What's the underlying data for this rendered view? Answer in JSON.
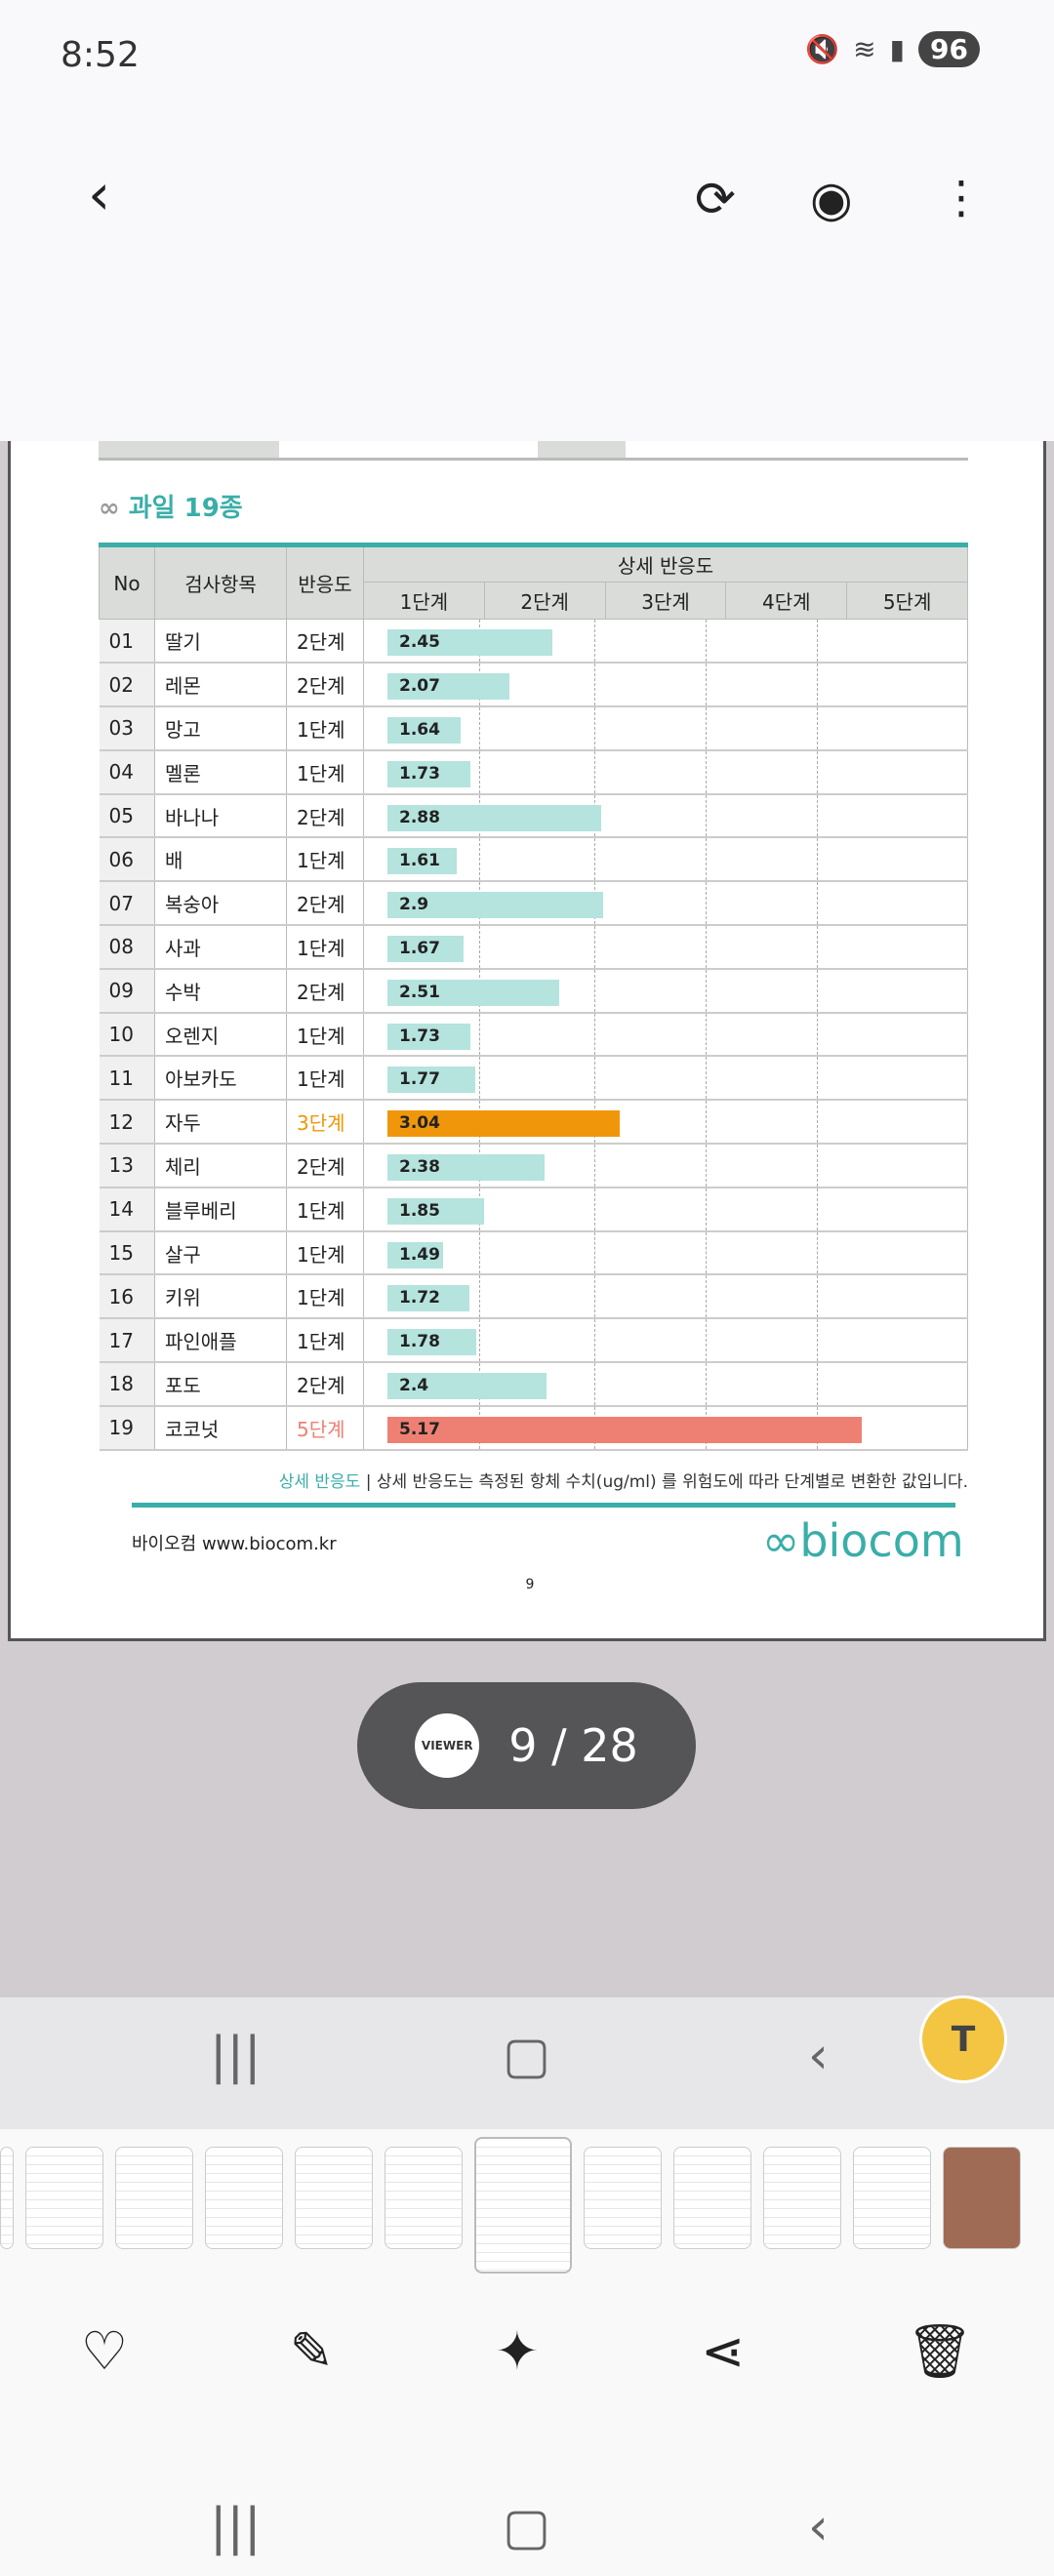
{
  "status": {
    "time": "8:52",
    "battery": "96",
    "icons": [
      "mute-icon",
      "wifi-icon",
      "signal-icon"
    ]
  },
  "toolbar": {
    "back": "back-icon",
    "play": "play-icon",
    "view": "eye-icon",
    "more": "more-icon"
  },
  "document": {
    "section_title": "과일 19종",
    "headers": {
      "no": "No",
      "item": "검사항목",
      "reaction": "반응도",
      "detail": "상세 반응도",
      "stages": [
        "1단계",
        "2단계",
        "3단계",
        "4단계",
        "5단계"
      ]
    },
    "rows": [
      {
        "no": "01",
        "item": "딸기",
        "level": "2단계",
        "value": "2.45"
      },
      {
        "no": "02",
        "item": "레몬",
        "level": "2단계",
        "value": "2.07"
      },
      {
        "no": "03",
        "item": "망고",
        "level": "1단계",
        "value": "1.64"
      },
      {
        "no": "04",
        "item": "멜론",
        "level": "1단계",
        "value": "1.73"
      },
      {
        "no": "05",
        "item": "바나나",
        "level": "2단계",
        "value": "2.88"
      },
      {
        "no": "06",
        "item": "배",
        "level": "1단계",
        "value": "1.61"
      },
      {
        "no": "07",
        "item": "복숭아",
        "level": "2단계",
        "value": "2.9"
      },
      {
        "no": "08",
        "item": "사과",
        "level": "1단계",
        "value": "1.67"
      },
      {
        "no": "09",
        "item": "수박",
        "level": "2단계",
        "value": "2.51"
      },
      {
        "no": "10",
        "item": "오렌지",
        "level": "1단계",
        "value": "1.73"
      },
      {
        "no": "11",
        "item": "아보카도",
        "level": "1단계",
        "value": "1.77"
      },
      {
        "no": "12",
        "item": "자두",
        "level": "3단계",
        "value": "3.04"
      },
      {
        "no": "13",
        "item": "체리",
        "level": "2단계",
        "value": "2.38"
      },
      {
        "no": "14",
        "item": "블루베리",
        "level": "1단계",
        "value": "1.85"
      },
      {
        "no": "15",
        "item": "살구",
        "level": "1단계",
        "value": "1.49"
      },
      {
        "no": "16",
        "item": "키위",
        "level": "1단계",
        "value": "1.72"
      },
      {
        "no": "17",
        "item": "파인애플",
        "level": "1단계",
        "value": "1.78"
      },
      {
        "no": "18",
        "item": "포도",
        "level": "2단계",
        "value": "2.4"
      },
      {
        "no": "19",
        "item": "코코넛",
        "level": "5단계",
        "value": "5.17"
      }
    ],
    "colors": {
      "low": "#b5e3de",
      "3단계": "#f0960a",
      "5단계": "#ee8073",
      "teal": "#3aaea8"
    },
    "footnote_key": "상세 반응도",
    "footnote": "상세 반응도는 측정된 항체 수치(ug/ml) 를 위험도에 따라 단계별로 변환한 값입니다.",
    "footer": "바이오컴  www.biocom.kr",
    "logo": "biocom",
    "page_number": "9"
  },
  "viewer": {
    "app": "VIEWER",
    "page_indicator": "9 / 28"
  },
  "actions": [
    "favorite-icon",
    "edit-icon",
    "ai-edit-icon",
    "share-icon",
    "delete-icon"
  ]
}
